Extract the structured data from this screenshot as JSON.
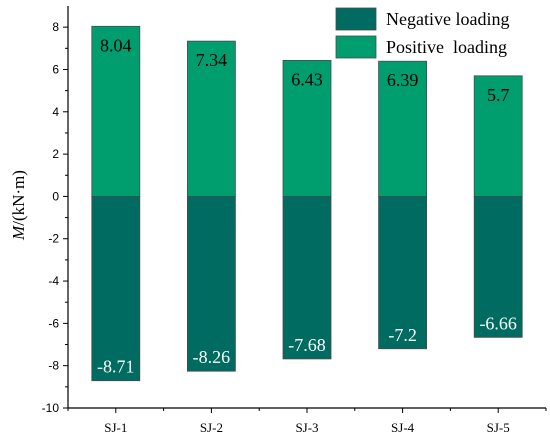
{
  "chart_data": {
    "type": "bar",
    "categories": [
      "SJ-1",
      "SJ-2",
      "SJ-3",
      "SJ-4",
      "SJ-5"
    ],
    "series": [
      {
        "name": "Positive  loading",
        "values": [
          8.04,
          7.34,
          6.43,
          6.39,
          5.7
        ],
        "labels": [
          "8.04",
          "7.34",
          "6.43",
          "6.39",
          "5.7"
        ],
        "color": "#009E6E",
        "label_color": "#000000"
      },
      {
        "name": "Negative loading",
        "values": [
          -8.71,
          -8.26,
          -7.68,
          -7.2,
          -6.66
        ],
        "labels": [
          "-8.71",
          "-8.26",
          "-7.68",
          "-7.2",
          "-6.66"
        ],
        "color": "#006B60",
        "label_color": "#FFFFFF"
      }
    ],
    "legend_order": [
      "Negative loading",
      "Positive  loading"
    ],
    "legend_position": "top-right",
    "ylabel": "M/(kN·m)",
    "ylabel_italic_part": "M",
    "ylabel_rest": "/(kN·m)",
    "xlabel": "",
    "ylim": [
      -10,
      9
    ],
    "yticks": [
      -10,
      -8,
      -6,
      -4,
      -2,
      0,
      2,
      4,
      6,
      8
    ],
    "grid": false,
    "stacked": true
  }
}
